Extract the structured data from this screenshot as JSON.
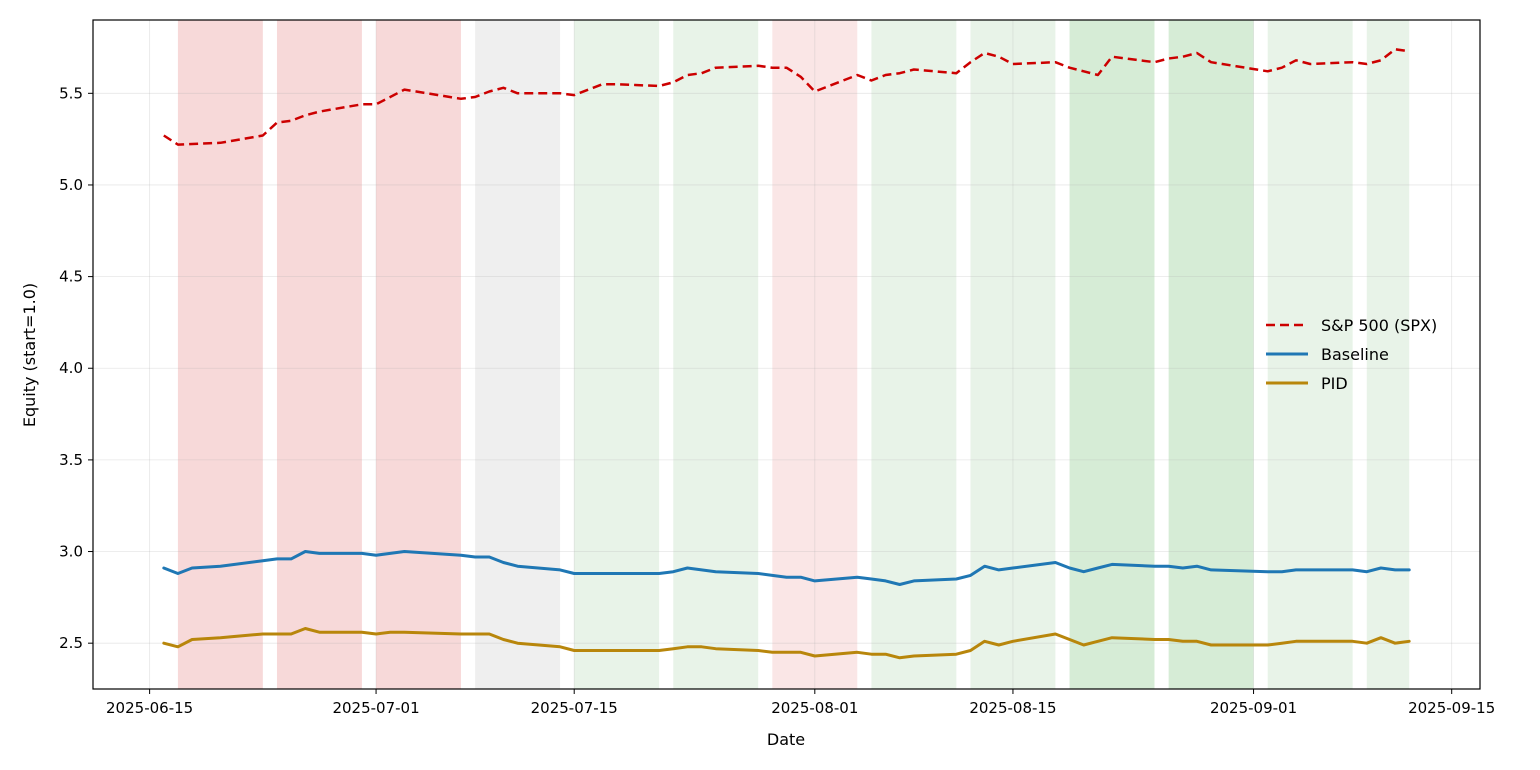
{
  "chart_data": {
    "type": "line",
    "title": "",
    "xlabel": "Date",
    "ylabel": "Equity (start=1.0)",
    "xlim": [
      "2025-06-11",
      "2025-09-17"
    ],
    "ylim": [
      2.25,
      5.9
    ],
    "x_ticks": [
      "2025-06-15",
      "2025-07-01",
      "2025-07-15",
      "2025-08-01",
      "2025-08-15",
      "2025-09-01",
      "2025-09-15"
    ],
    "y_ticks": [
      2.5,
      3.0,
      3.5,
      4.0,
      4.5,
      5.0,
      5.5
    ],
    "y_tick_labels": [
      "2.5",
      "3.0",
      "3.5",
      "4.0",
      "4.5",
      "5.0",
      "5.5"
    ],
    "grid": true,
    "legend_placement": "center-right",
    "shaded_regions": [
      {
        "start": "2025-06-17",
        "end": "2025-06-23",
        "color": "#e06666",
        "opacity": 0.25
      },
      {
        "start": "2025-06-24",
        "end": "2025-06-30",
        "color": "#e06666",
        "opacity": 0.25
      },
      {
        "start": "2025-07-01",
        "end": "2025-07-07",
        "color": "#e06666",
        "opacity": 0.25
      },
      {
        "start": "2025-07-08",
        "end": "2025-07-14",
        "color": "#b0b0b0",
        "opacity": 0.2
      },
      {
        "start": "2025-07-15",
        "end": "2025-07-21",
        "color": "#7fbf7f",
        "opacity": 0.18
      },
      {
        "start": "2025-07-22",
        "end": "2025-07-28",
        "color": "#7fbf7f",
        "opacity": 0.18
      },
      {
        "start": "2025-07-29",
        "end": "2025-08-04",
        "color": "#e06666",
        "opacity": 0.16
      },
      {
        "start": "2025-08-05",
        "end": "2025-08-11",
        "color": "#7fbf7f",
        "opacity": 0.18
      },
      {
        "start": "2025-08-12",
        "end": "2025-08-18",
        "color": "#7fbf7f",
        "opacity": 0.18
      },
      {
        "start": "2025-08-19",
        "end": "2025-08-25",
        "color": "#6cba6c",
        "opacity": 0.28
      },
      {
        "start": "2025-08-26",
        "end": "2025-09-01",
        "color": "#6cba6c",
        "opacity": 0.28
      },
      {
        "start": "2025-09-02",
        "end": "2025-09-08",
        "color": "#7fbf7f",
        "opacity": 0.18
      },
      {
        "start": "2025-09-09",
        "end": "2025-09-12",
        "color": "#7fbf7f",
        "opacity": 0.18
      }
    ],
    "series": [
      {
        "name": "S&P 500 (SPX)",
        "color": "#cc0000",
        "dash": "dashed",
        "points": [
          [
            "2025-06-16",
            5.27
          ],
          [
            "2025-06-17",
            5.22
          ],
          [
            "2025-06-20",
            5.23
          ],
          [
            "2025-06-23",
            5.27
          ],
          [
            "2025-06-24",
            5.34
          ],
          [
            "2025-06-25",
            5.35
          ],
          [
            "2025-06-26",
            5.38
          ],
          [
            "2025-06-27",
            5.4
          ],
          [
            "2025-06-30",
            5.44
          ],
          [
            "2025-07-01",
            5.44
          ],
          [
            "2025-07-02",
            5.48
          ],
          [
            "2025-07-03",
            5.52
          ],
          [
            "2025-07-07",
            5.47
          ],
          [
            "2025-07-08",
            5.48
          ],
          [
            "2025-07-09",
            5.51
          ],
          [
            "2025-07-10",
            5.53
          ],
          [
            "2025-07-11",
            5.5
          ],
          [
            "2025-07-14",
            5.5
          ],
          [
            "2025-07-15",
            5.49
          ],
          [
            "2025-07-16",
            5.52
          ],
          [
            "2025-07-17",
            5.55
          ],
          [
            "2025-07-18",
            5.55
          ],
          [
            "2025-07-21",
            5.54
          ],
          [
            "2025-07-22",
            5.56
          ],
          [
            "2025-07-23",
            5.6
          ],
          [
            "2025-07-24",
            5.61
          ],
          [
            "2025-07-25",
            5.64
          ],
          [
            "2025-07-28",
            5.65
          ],
          [
            "2025-07-29",
            5.64
          ],
          [
            "2025-07-30",
            5.64
          ],
          [
            "2025-07-31",
            5.59
          ],
          [
            "2025-08-01",
            5.51
          ],
          [
            "2025-08-04",
            5.6
          ],
          [
            "2025-08-05",
            5.57
          ],
          [
            "2025-08-06",
            5.6
          ],
          [
            "2025-08-07",
            5.61
          ],
          [
            "2025-08-08",
            5.63
          ],
          [
            "2025-08-11",
            5.61
          ],
          [
            "2025-08-12",
            5.67
          ],
          [
            "2025-08-13",
            5.72
          ],
          [
            "2025-08-14",
            5.7
          ],
          [
            "2025-08-15",
            5.66
          ],
          [
            "2025-08-18",
            5.67
          ],
          [
            "2025-08-19",
            5.64
          ],
          [
            "2025-08-20",
            5.62
          ],
          [
            "2025-08-21",
            5.6
          ],
          [
            "2025-08-22",
            5.7
          ],
          [
            "2025-08-25",
            5.67
          ],
          [
            "2025-08-26",
            5.69
          ],
          [
            "2025-08-27",
            5.7
          ],
          [
            "2025-08-28",
            5.72
          ],
          [
            "2025-08-29",
            5.67
          ],
          [
            "2025-09-02",
            5.62
          ],
          [
            "2025-09-03",
            5.64
          ],
          [
            "2025-09-04",
            5.68
          ],
          [
            "2025-09-05",
            5.66
          ],
          [
            "2025-09-08",
            5.67
          ],
          [
            "2025-09-09",
            5.66
          ],
          [
            "2025-09-10",
            5.68
          ],
          [
            "2025-09-11",
            5.74
          ],
          [
            "2025-09-12",
            5.73
          ]
        ]
      },
      {
        "name": "Baseline",
        "color": "#1f77b4",
        "dash": "solid",
        "points": [
          [
            "2025-06-16",
            2.91
          ],
          [
            "2025-06-17",
            2.88
          ],
          [
            "2025-06-18",
            2.91
          ],
          [
            "2025-06-20",
            2.92
          ],
          [
            "2025-06-23",
            2.95
          ],
          [
            "2025-06-24",
            2.96
          ],
          [
            "2025-06-25",
            2.96
          ],
          [
            "2025-06-26",
            3.0
          ],
          [
            "2025-06-27",
            2.99
          ],
          [
            "2025-06-30",
            2.99
          ],
          [
            "2025-07-01",
            2.98
          ],
          [
            "2025-07-02",
            2.99
          ],
          [
            "2025-07-03",
            3.0
          ],
          [
            "2025-07-07",
            2.98
          ],
          [
            "2025-07-08",
            2.97
          ],
          [
            "2025-07-09",
            2.97
          ],
          [
            "2025-07-10",
            2.94
          ],
          [
            "2025-07-11",
            2.92
          ],
          [
            "2025-07-14",
            2.9
          ],
          [
            "2025-07-15",
            2.88
          ],
          [
            "2025-07-16",
            2.88
          ],
          [
            "2025-07-17",
            2.88
          ],
          [
            "2025-07-18",
            2.88
          ],
          [
            "2025-07-21",
            2.88
          ],
          [
            "2025-07-22",
            2.89
          ],
          [
            "2025-07-23",
            2.91
          ],
          [
            "2025-07-24",
            2.9
          ],
          [
            "2025-07-25",
            2.89
          ],
          [
            "2025-07-28",
            2.88
          ],
          [
            "2025-07-29",
            2.87
          ],
          [
            "2025-07-30",
            2.86
          ],
          [
            "2025-07-31",
            2.86
          ],
          [
            "2025-08-01",
            2.84
          ],
          [
            "2025-08-04",
            2.86
          ],
          [
            "2025-08-05",
            2.85
          ],
          [
            "2025-08-06",
            2.84
          ],
          [
            "2025-08-07",
            2.82
          ],
          [
            "2025-08-08",
            2.84
          ],
          [
            "2025-08-11",
            2.85
          ],
          [
            "2025-08-12",
            2.87
          ],
          [
            "2025-08-13",
            2.92
          ],
          [
            "2025-08-14",
            2.9
          ],
          [
            "2025-08-15",
            2.91
          ],
          [
            "2025-08-18",
            2.94
          ],
          [
            "2025-08-19",
            2.91
          ],
          [
            "2025-08-20",
            2.89
          ],
          [
            "2025-08-21",
            2.91
          ],
          [
            "2025-08-22",
            2.93
          ],
          [
            "2025-08-25",
            2.92
          ],
          [
            "2025-08-26",
            2.92
          ],
          [
            "2025-08-27",
            2.91
          ],
          [
            "2025-08-28",
            2.92
          ],
          [
            "2025-08-29",
            2.9
          ],
          [
            "2025-09-02",
            2.89
          ],
          [
            "2025-09-03",
            2.89
          ],
          [
            "2025-09-04",
            2.9
          ],
          [
            "2025-09-05",
            2.9
          ],
          [
            "2025-09-08",
            2.9
          ],
          [
            "2025-09-09",
            2.89
          ],
          [
            "2025-09-10",
            2.91
          ],
          [
            "2025-09-11",
            2.9
          ],
          [
            "2025-09-12",
            2.9
          ]
        ]
      },
      {
        "name": "PID",
        "color": "#b8860b",
        "dash": "solid",
        "points": [
          [
            "2025-06-16",
            2.5
          ],
          [
            "2025-06-17",
            2.48
          ],
          [
            "2025-06-18",
            2.52
          ],
          [
            "2025-06-20",
            2.53
          ],
          [
            "2025-06-23",
            2.55
          ],
          [
            "2025-06-24",
            2.55
          ],
          [
            "2025-06-25",
            2.55
          ],
          [
            "2025-06-26",
            2.58
          ],
          [
            "2025-06-27",
            2.56
          ],
          [
            "2025-06-30",
            2.56
          ],
          [
            "2025-07-01",
            2.55
          ],
          [
            "2025-07-02",
            2.56
          ],
          [
            "2025-07-03",
            2.56
          ],
          [
            "2025-07-07",
            2.55
          ],
          [
            "2025-07-08",
            2.55
          ],
          [
            "2025-07-09",
            2.55
          ],
          [
            "2025-07-10",
            2.52
          ],
          [
            "2025-07-11",
            2.5
          ],
          [
            "2025-07-14",
            2.48
          ],
          [
            "2025-07-15",
            2.46
          ],
          [
            "2025-07-16",
            2.46
          ],
          [
            "2025-07-17",
            2.46
          ],
          [
            "2025-07-18",
            2.46
          ],
          [
            "2025-07-21",
            2.46
          ],
          [
            "2025-07-22",
            2.47
          ],
          [
            "2025-07-23",
            2.48
          ],
          [
            "2025-07-24",
            2.48
          ],
          [
            "2025-07-25",
            2.47
          ],
          [
            "2025-07-28",
            2.46
          ],
          [
            "2025-07-29",
            2.45
          ],
          [
            "2025-07-30",
            2.45
          ],
          [
            "2025-07-31",
            2.45
          ],
          [
            "2025-08-01",
            2.43
          ],
          [
            "2025-08-04",
            2.45
          ],
          [
            "2025-08-05",
            2.44
          ],
          [
            "2025-08-06",
            2.44
          ],
          [
            "2025-08-07",
            2.42
          ],
          [
            "2025-08-08",
            2.43
          ],
          [
            "2025-08-11",
            2.44
          ],
          [
            "2025-08-12",
            2.46
          ],
          [
            "2025-08-13",
            2.51
          ],
          [
            "2025-08-14",
            2.49
          ],
          [
            "2025-08-15",
            2.51
          ],
          [
            "2025-08-18",
            2.55
          ],
          [
            "2025-08-19",
            2.52
          ],
          [
            "2025-08-20",
            2.49
          ],
          [
            "2025-08-21",
            2.51
          ],
          [
            "2025-08-22",
            2.53
          ],
          [
            "2025-08-25",
            2.52
          ],
          [
            "2025-08-26",
            2.52
          ],
          [
            "2025-08-27",
            2.51
          ],
          [
            "2025-08-28",
            2.51
          ],
          [
            "2025-08-29",
            2.49
          ],
          [
            "2025-09-02",
            2.49
          ],
          [
            "2025-09-03",
            2.5
          ],
          [
            "2025-09-04",
            2.51
          ],
          [
            "2025-09-05",
            2.51
          ],
          [
            "2025-09-08",
            2.51
          ],
          [
            "2025-09-09",
            2.5
          ],
          [
            "2025-09-10",
            2.53
          ],
          [
            "2025-09-11",
            2.5
          ],
          [
            "2025-09-12",
            2.51
          ]
        ]
      }
    ]
  }
}
